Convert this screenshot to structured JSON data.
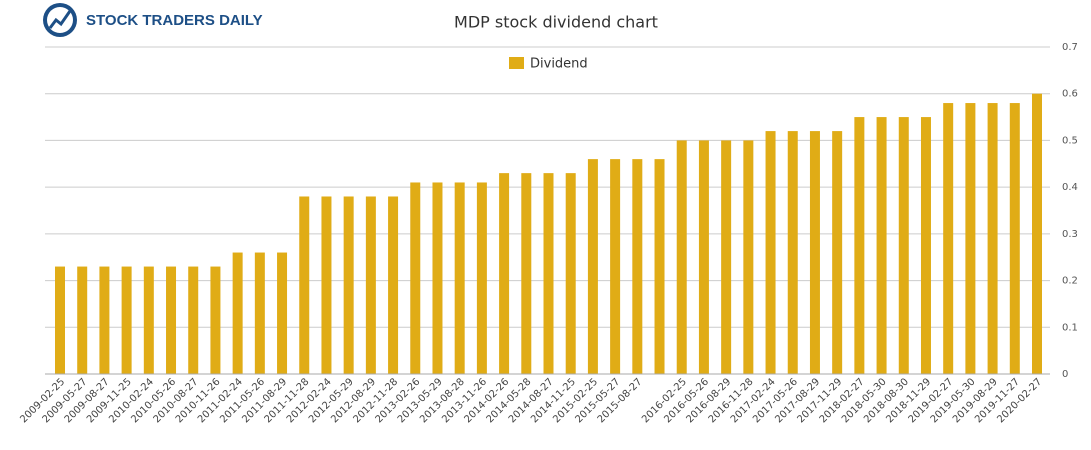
{
  "brand": "STOCK TRADERS DAILY",
  "chart_data": {
    "type": "bar",
    "title": "MDP stock dividend chart",
    "categories": [
      "2009-02-25",
      "2009-05-27",
      "2009-08-27",
      "2009-11-25",
      "2010-02-24",
      "2010-05-26",
      "2010-08-27",
      "2010-11-26",
      "2011-02-24",
      "2011-05-26",
      "2011-08-29",
      "2011-11-28",
      "2012-02-24",
      "2012-05-29",
      "2012-08-29",
      "2012-11-28",
      "2013-02-26",
      "2013-05-29",
      "2013-08-28",
      "2013-11-26",
      "2014-02-26",
      "2014-05-28",
      "2014-08-27",
      "2014-11-25",
      "2015-02-25",
      "2015-05-27",
      "2015-08-27",
      null,
      "2016-02-25",
      "2016-05-26",
      "2016-08-29",
      "2016-11-28",
      "2017-02-24",
      "2017-05-26",
      "2017-08-29",
      "2017-11-29",
      "2018-02-27",
      "2018-05-30",
      "2018-08-30",
      "2018-11-29",
      "2019-02-27",
      "2019-05-30",
      "2019-08-29",
      "2019-11-27",
      "2020-02-27"
    ],
    "series": [
      {
        "name": "Dividend",
        "color": "#e0ac16",
        "values": [
          0.23,
          0.23,
          0.23,
          0.23,
          0.23,
          0.23,
          0.23,
          0.23,
          0.26,
          0.26,
          0.26,
          0.38,
          0.38,
          0.38,
          0.38,
          0.38,
          0.41,
          0.41,
          0.41,
          0.41,
          0.43,
          0.43,
          0.43,
          0.43,
          0.46,
          0.46,
          0.46,
          0.46,
          0.5,
          0.5,
          0.5,
          0.5,
          0.52,
          0.52,
          0.52,
          0.52,
          0.55,
          0.55,
          0.55,
          0.55,
          0.58,
          0.58,
          0.58,
          0.58,
          0.6
        ]
      }
    ],
    "ylim": [
      0,
      0.7
    ],
    "yticks": [
      0,
      0.1,
      0.2,
      0.3,
      0.4,
      0.5,
      0.6,
      0.7
    ],
    "grid": true,
    "legend": "top"
  }
}
